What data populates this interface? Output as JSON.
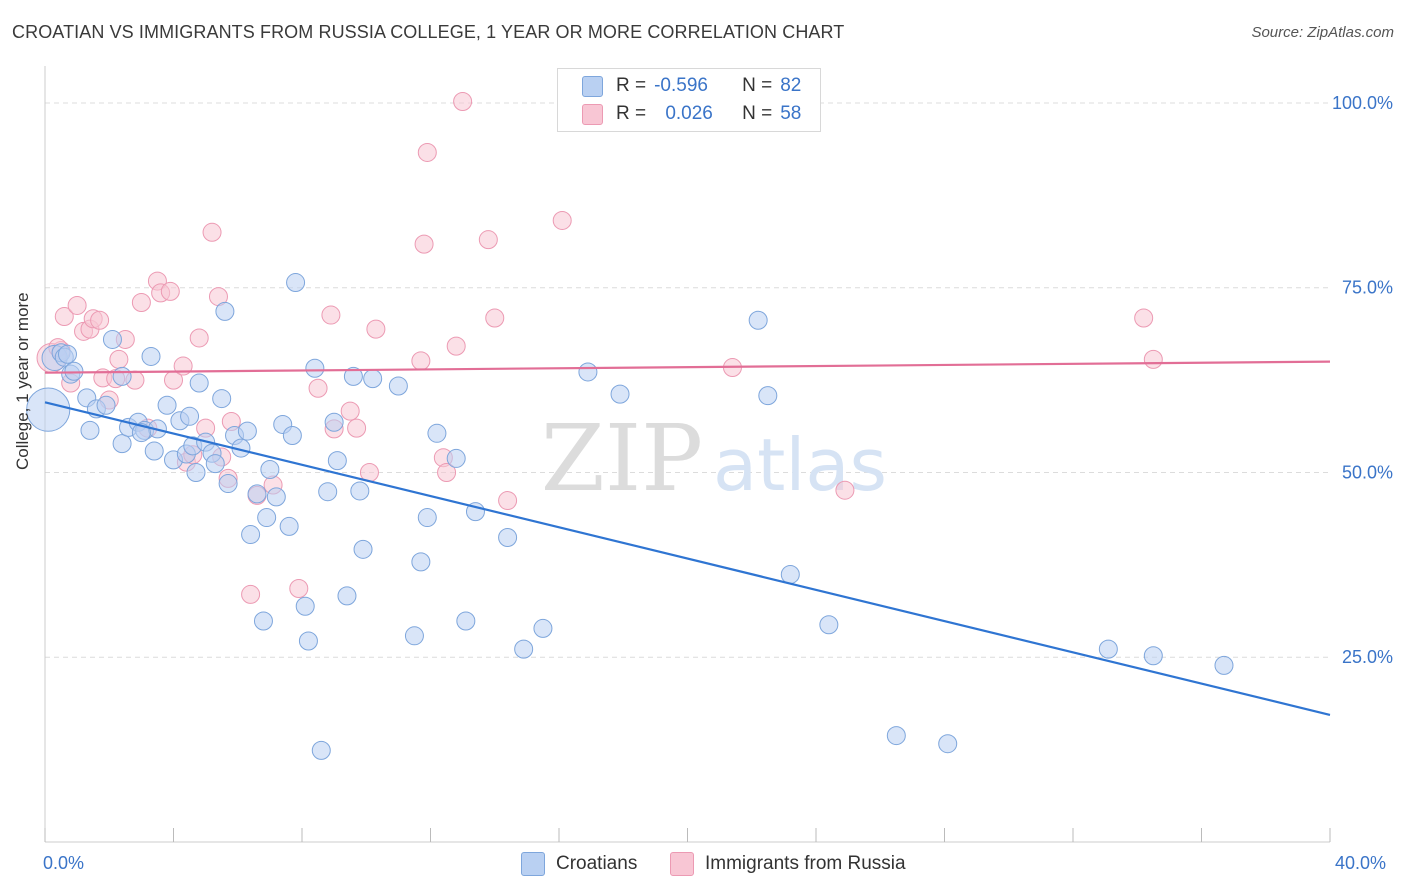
{
  "header": {
    "title": "CROATIAN VS IMMIGRANTS FROM RUSSIA COLLEGE, 1 YEAR OR MORE CORRELATION CHART",
    "source": "Source: ZipAtlas.com"
  },
  "legend": {
    "rows": [
      {
        "r_label": "R =",
        "r_value": "-0.596",
        "n_label": "N =",
        "n_value": "82"
      },
      {
        "r_label": "R =",
        "r_value": "0.026",
        "n_label": "N =",
        "n_value": "58"
      }
    ]
  },
  "colors": {
    "blue_fill": "#b9d0f2",
    "blue_stroke": "#7ea6dc",
    "blue_line": "#2f75d2",
    "pink_fill": "#f8c6d4",
    "pink_stroke": "#ec9ab3",
    "pink_line": "#e26e96",
    "axis_text": "#3a74c8",
    "grid": "#dcdcdc"
  },
  "watermark": {
    "zip": "ZIP",
    "atlas": "atlas"
  },
  "chart_data": {
    "type": "scatter",
    "title": "CROATIAN VS IMMIGRANTS FROM RUSSIA COLLEGE, 1 YEAR OR MORE CORRELATION CHART",
    "xlabel": "",
    "ylabel": "College, 1 year or more",
    "xlim": [
      0,
      40
    ],
    "ylim": [
      0,
      105
    ],
    "x_tick_labels": {
      "left": "0.0%",
      "right": "40.0%"
    },
    "y_ticks": [
      {
        "value": 25,
        "label": "25.0%"
      },
      {
        "value": 50,
        "label": "50.0%"
      },
      {
        "value": 75,
        "label": "75.0%"
      },
      {
        "value": 100,
        "label": "100.0%"
      }
    ],
    "legend_position": "top-center",
    "series": [
      {
        "name": "Croatians",
        "trend": {
          "x0": 0,
          "y0": 59.5,
          "x1": 40,
          "y1": 17.2
        },
        "points": [
          [
            0.1,
            58.5,
            2.4
          ],
          [
            0.3,
            65.5,
            1.4
          ],
          [
            0.5,
            66.2,
            1
          ],
          [
            0.6,
            65.6,
            1
          ],
          [
            0.8,
            63.3,
            1
          ],
          [
            0.9,
            63.7,
            1
          ],
          [
            1.3,
            60.1,
            1
          ],
          [
            1.4,
            55.7,
            1
          ],
          [
            1.6,
            58.6,
            1
          ],
          [
            1.9,
            59.1,
            1
          ],
          [
            2.1,
            68.0,
            1
          ],
          [
            2.4,
            63.0,
            1
          ],
          [
            2.4,
            53.9,
            1
          ],
          [
            2.6,
            56.1,
            1
          ],
          [
            2.9,
            56.8,
            1
          ],
          [
            3.1,
            55.7,
            1
          ],
          [
            3.3,
            65.7,
            1
          ],
          [
            3.4,
            52.9,
            1
          ],
          [
            3.5,
            55.9,
            1
          ],
          [
            3.8,
            59.1,
            1
          ],
          [
            4.0,
            51.7,
            1
          ],
          [
            4.2,
            57.0,
            1
          ],
          [
            4.4,
            52.5,
            1
          ],
          [
            4.5,
            57.6,
            1
          ],
          [
            4.6,
            53.6,
            1
          ],
          [
            4.7,
            50.0,
            1
          ],
          [
            4.8,
            62.1,
            1
          ],
          [
            5.0,
            54.1,
            1
          ],
          [
            5.2,
            52.6,
            1
          ],
          [
            5.3,
            51.2,
            1
          ],
          [
            5.5,
            60.0,
            1
          ],
          [
            5.6,
            71.8,
            1
          ],
          [
            5.7,
            48.5,
            1
          ],
          [
            5.9,
            55.0,
            1
          ],
          [
            6.1,
            53.3,
            1
          ],
          [
            6.3,
            55.6,
            1
          ],
          [
            6.4,
            41.6,
            1
          ],
          [
            6.6,
            47.1,
            1
          ],
          [
            6.8,
            29.9,
            1
          ],
          [
            6.9,
            43.9,
            1
          ],
          [
            7.0,
            50.4,
            1
          ],
          [
            7.2,
            46.7,
            1
          ],
          [
            7.4,
            56.5,
            1
          ],
          [
            7.6,
            42.7,
            1
          ],
          [
            7.7,
            55.0,
            1
          ],
          [
            7.8,
            75.7,
            1
          ],
          [
            8.1,
            31.9,
            1
          ],
          [
            8.2,
            27.2,
            1
          ],
          [
            8.4,
            64.1,
            1
          ],
          [
            8.6,
            12.4,
            1
          ],
          [
            8.8,
            47.4,
            1
          ],
          [
            9.0,
            56.8,
            1
          ],
          [
            9.1,
            51.6,
            1
          ],
          [
            9.4,
            33.3,
            1
          ],
          [
            9.6,
            63.0,
            1
          ],
          [
            9.8,
            47.5,
            1
          ],
          [
            9.9,
            39.6,
            1
          ],
          [
            10.2,
            62.7,
            1
          ],
          [
            11.0,
            61.7,
            1
          ],
          [
            11.5,
            27.9,
            1
          ],
          [
            11.7,
            37.9,
            1
          ],
          [
            11.9,
            43.9,
            1
          ],
          [
            12.2,
            55.3,
            1
          ],
          [
            12.8,
            51.9,
            1
          ],
          [
            13.1,
            29.9,
            1
          ],
          [
            13.4,
            44.7,
            1
          ],
          [
            14.4,
            41.2,
            1
          ],
          [
            14.9,
            26.1,
            1
          ],
          [
            15.5,
            28.9,
            1
          ],
          [
            16.9,
            63.6,
            1
          ],
          [
            17.9,
            60.6,
            1
          ],
          [
            22.2,
            70.6,
            1
          ],
          [
            22.5,
            60.4,
            1
          ],
          [
            23.2,
            36.2,
            1
          ],
          [
            24.4,
            29.4,
            1
          ],
          [
            26.5,
            14.4,
            1
          ],
          [
            28.1,
            13.3,
            1
          ],
          [
            33.1,
            26.1,
            1
          ],
          [
            34.5,
            25.2,
            1
          ],
          [
            36.7,
            23.9,
            1
          ],
          [
            0.7,
            66.0,
            1
          ],
          [
            3.0,
            55.4,
            1
          ]
        ]
      },
      {
        "name": "Immigrants from Russia",
        "trend": {
          "x0": 0,
          "y0": 63.5,
          "x1": 40,
          "y1": 65.0
        },
        "points": [
          [
            0.2,
            65.5,
            1.6
          ],
          [
            0.5,
            66.5,
            1
          ],
          [
            0.6,
            71.1,
            1
          ],
          [
            0.8,
            62.1,
            1
          ],
          [
            1.0,
            72.6,
            1
          ],
          [
            1.2,
            69.1,
            1
          ],
          [
            1.4,
            69.4,
            1
          ],
          [
            1.5,
            70.8,
            1
          ],
          [
            1.7,
            70.6,
            1
          ],
          [
            1.8,
            62.8,
            1
          ],
          [
            2.0,
            59.8,
            1
          ],
          [
            2.2,
            62.7,
            1
          ],
          [
            2.3,
            65.3,
            1
          ],
          [
            2.5,
            68.0,
            1
          ],
          [
            2.8,
            62.5,
            1
          ],
          [
            3.0,
            73.0,
            1
          ],
          [
            3.2,
            56.0,
            1
          ],
          [
            3.5,
            75.9,
            1
          ],
          [
            3.6,
            74.3,
            1
          ],
          [
            3.9,
            74.5,
            1
          ],
          [
            4.0,
            62.5,
            1
          ],
          [
            4.3,
            64.4,
            1
          ],
          [
            4.4,
            51.4,
            1
          ],
          [
            4.6,
            52.4,
            1
          ],
          [
            4.8,
            68.2,
            1
          ],
          [
            5.0,
            56.0,
            1
          ],
          [
            5.2,
            82.5,
            1
          ],
          [
            5.4,
            73.8,
            1
          ],
          [
            5.5,
            52.1,
            1
          ],
          [
            5.7,
            49.2,
            1
          ],
          [
            5.8,
            56.9,
            1
          ],
          [
            6.4,
            33.5,
            1
          ],
          [
            6.6,
            46.9,
            1
          ],
          [
            7.1,
            48.3,
            1
          ],
          [
            7.9,
            34.3,
            1
          ],
          [
            8.5,
            61.4,
            1
          ],
          [
            8.9,
            71.3,
            1
          ],
          [
            9.0,
            55.9,
            1
          ],
          [
            9.5,
            58.3,
            1
          ],
          [
            9.7,
            56.0,
            1
          ],
          [
            10.1,
            50.0,
            1
          ],
          [
            10.3,
            69.4,
            1
          ],
          [
            11.7,
            65.1,
            1
          ],
          [
            11.8,
            80.9,
            1
          ],
          [
            11.9,
            93.3,
            1
          ],
          [
            12.4,
            52.0,
            1
          ],
          [
            12.5,
            50.0,
            1
          ],
          [
            12.8,
            67.1,
            1
          ],
          [
            13.0,
            100.2,
            1
          ],
          [
            13.8,
            81.5,
            1
          ],
          [
            14.0,
            70.9,
            1
          ],
          [
            14.4,
            46.2,
            1
          ],
          [
            16.1,
            84.1,
            1
          ],
          [
            21.4,
            64.2,
            1
          ],
          [
            24.9,
            47.6,
            1
          ],
          [
            34.2,
            70.9,
            1
          ],
          [
            34.5,
            65.3,
            1
          ],
          [
            0.4,
            66.9,
            1
          ]
        ]
      }
    ]
  },
  "bottom_legend": {
    "items": [
      "Croatians",
      "Immigrants from Russia"
    ]
  }
}
